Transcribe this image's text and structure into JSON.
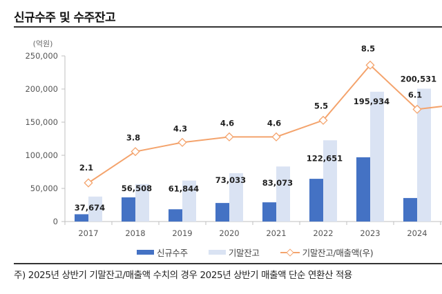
{
  "title": "신규수주 및 수주잔고",
  "footnote": "주) 2025년 상반기 기말잔고/매출액 수치의 경우 2025년 상반기 매출액 단순 연환산 적용",
  "colors": {
    "new_orders": "#4472c4",
    "backlog": "#dae3f3",
    "ratio_line": "#f4a36c",
    "axis": "#bfbfbf"
  },
  "chart_data": {
    "type": "bar+line",
    "title": "신규수주 및 수주잔고",
    "unit_label": "(억원)",
    "categories": [
      "2017",
      "2018",
      "2019",
      "2020",
      "2021",
      "2022",
      "2023",
      "2024"
    ],
    "y_left": {
      "ylim": [
        0,
        250000
      ],
      "ticks": [
        0,
        50000,
        100000,
        150000,
        200000,
        250000
      ],
      "tick_labels": [
        "0",
        "50,000",
        "100,000",
        "150,000",
        "200,000",
        "250,000"
      ]
    },
    "y_right": {
      "ylim": [
        0,
        9
      ],
      "visible": false
    },
    "series": [
      {
        "name": "신규수주",
        "type": "bar",
        "axis": "left",
        "values": [
          11000,
          36500,
          18500,
          28000,
          29000,
          64500,
          97000,
          35500
        ],
        "labels_shown": false
      },
      {
        "name": "기말잔고",
        "type": "bar",
        "axis": "left",
        "values": [
          37674,
          56508,
          61844,
          73033,
          83073,
          122651,
          195934,
          200531
        ],
        "data_labels": [
          "37,674",
          "56,508",
          "61,844",
          "73,033",
          "83,073",
          "122,651",
          "195,934",
          "200,531"
        ]
      },
      {
        "name": "기말잔고/매출액(우)",
        "type": "line",
        "axis": "right",
        "values": [
          2.1,
          3.8,
          4.3,
          4.6,
          4.6,
          5.5,
          8.5,
          6.1
        ],
        "data_labels": [
          "2.1",
          "3.8",
          "4.3",
          "4.6",
          "4.6",
          "5.5",
          "8.5",
          "6.1"
        ],
        "continues_beyond_view": true
      }
    ],
    "legend": [
      "신규수주",
      "기말잔고",
      "기말잔고/매출액(우)"
    ],
    "legend_position": "bottom",
    "grid": false
  }
}
